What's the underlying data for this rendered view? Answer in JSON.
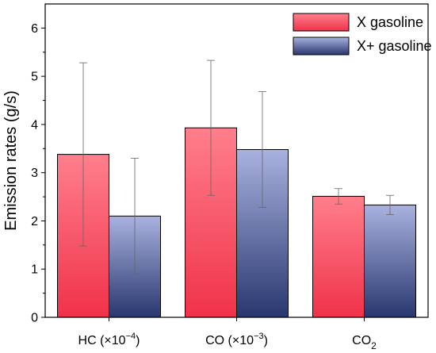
{
  "chart_data": {
    "type": "bar",
    "ylabel": "Emission rates (g/s)",
    "xlabel": "",
    "ylim": [
      0,
      6.5
    ],
    "yticks": [
      0,
      1,
      2,
      3,
      4,
      5,
      6
    ],
    "grid": false,
    "legend_position": "top-right",
    "categories": [
      {
        "main": "HC (×10",
        "sup": "−4",
        "sub": "",
        "tail": ")"
      },
      {
        "main": "CO (×10",
        "sup": "−3",
        "sub": "",
        "tail": ")"
      },
      {
        "main": "CO",
        "sup": "",
        "sub": "2",
        "tail": ""
      }
    ],
    "series": [
      {
        "name": "X gasoline",
        "values": [
          3.38,
          3.93,
          2.51
        ],
        "errors": [
          1.9,
          1.4,
          0.16
        ],
        "color_top": "#ff7f8c",
        "color_bottom": "#f0324a"
      },
      {
        "name": "X+ gasoline",
        "values": [
          2.1,
          3.48,
          2.33
        ],
        "errors": [
          1.2,
          1.2,
          0.2
        ],
        "color_top": "#a9b2df",
        "color_bottom": "#29376f"
      }
    ]
  }
}
